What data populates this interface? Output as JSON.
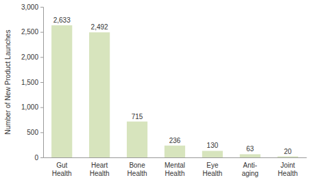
{
  "chart_data": {
    "type": "bar",
    "y_label": "Number of New Product Launches",
    "categories": [
      "Gut Health",
      "Heart Health",
      "Bone Health",
      "Mental Health",
      "Eye Health",
      "Anti-aging",
      "Joint Health"
    ],
    "values": [
      2633,
      2492,
      715,
      236,
      130,
      63,
      20
    ],
    "value_labels": [
      "2,633",
      "2,492",
      "715",
      "236",
      "130",
      "63",
      "20"
    ],
    "color": "#d7e4bd",
    "ylim": [
      0,
      3000
    ],
    "yticks": [
      0,
      500,
      {
        "value": 1000,
        "label": "1,000"
      },
      {
        "value": 1500,
        "label": "1,500"
      },
      {
        "value": 2000,
        "label": "2,000"
      },
      {
        "value": 2500,
        "label": "2,500"
      },
      {
        "value": 3000,
        "label": "3,000"
      }
    ],
    "grid": false,
    "data_labels": true
  }
}
